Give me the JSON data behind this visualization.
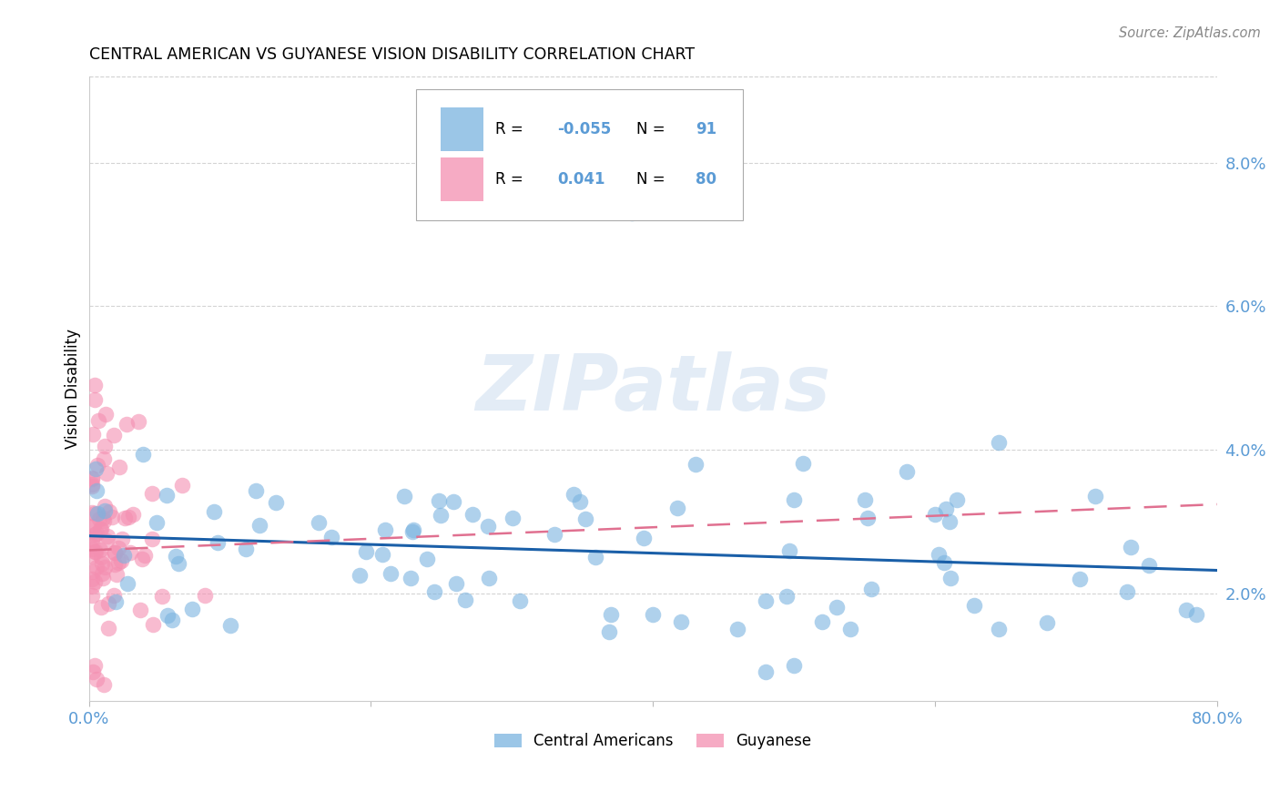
{
  "title": "CENTRAL AMERICAN VS GUYANESE VISION DISABILITY CORRELATION CHART",
  "source": "Source: ZipAtlas.com",
  "ylabel": "Vision Disability",
  "xlim": [
    0.0,
    0.8
  ],
  "ylim": [
    0.005,
    0.092
  ],
  "ytick_vals": [
    0.02,
    0.04,
    0.06,
    0.08
  ],
  "ytick_labels": [
    "2.0%",
    "4.0%",
    "6.0%",
    "8.0%"
  ],
  "blue_color": "#7ab3e0",
  "pink_color": "#f48fb1",
  "trend_blue": "#1a5fa8",
  "trend_pink": "#e07090",
  "background": "#ffffff",
  "grid_color": "#d0d0d0",
  "axis_color": "#5b9bd5",
  "legend_R_blue": "-0.055",
  "legend_N_blue": "91",
  "legend_R_pink": "0.041",
  "legend_N_pink": "80",
  "watermark": "ZIPatlas"
}
